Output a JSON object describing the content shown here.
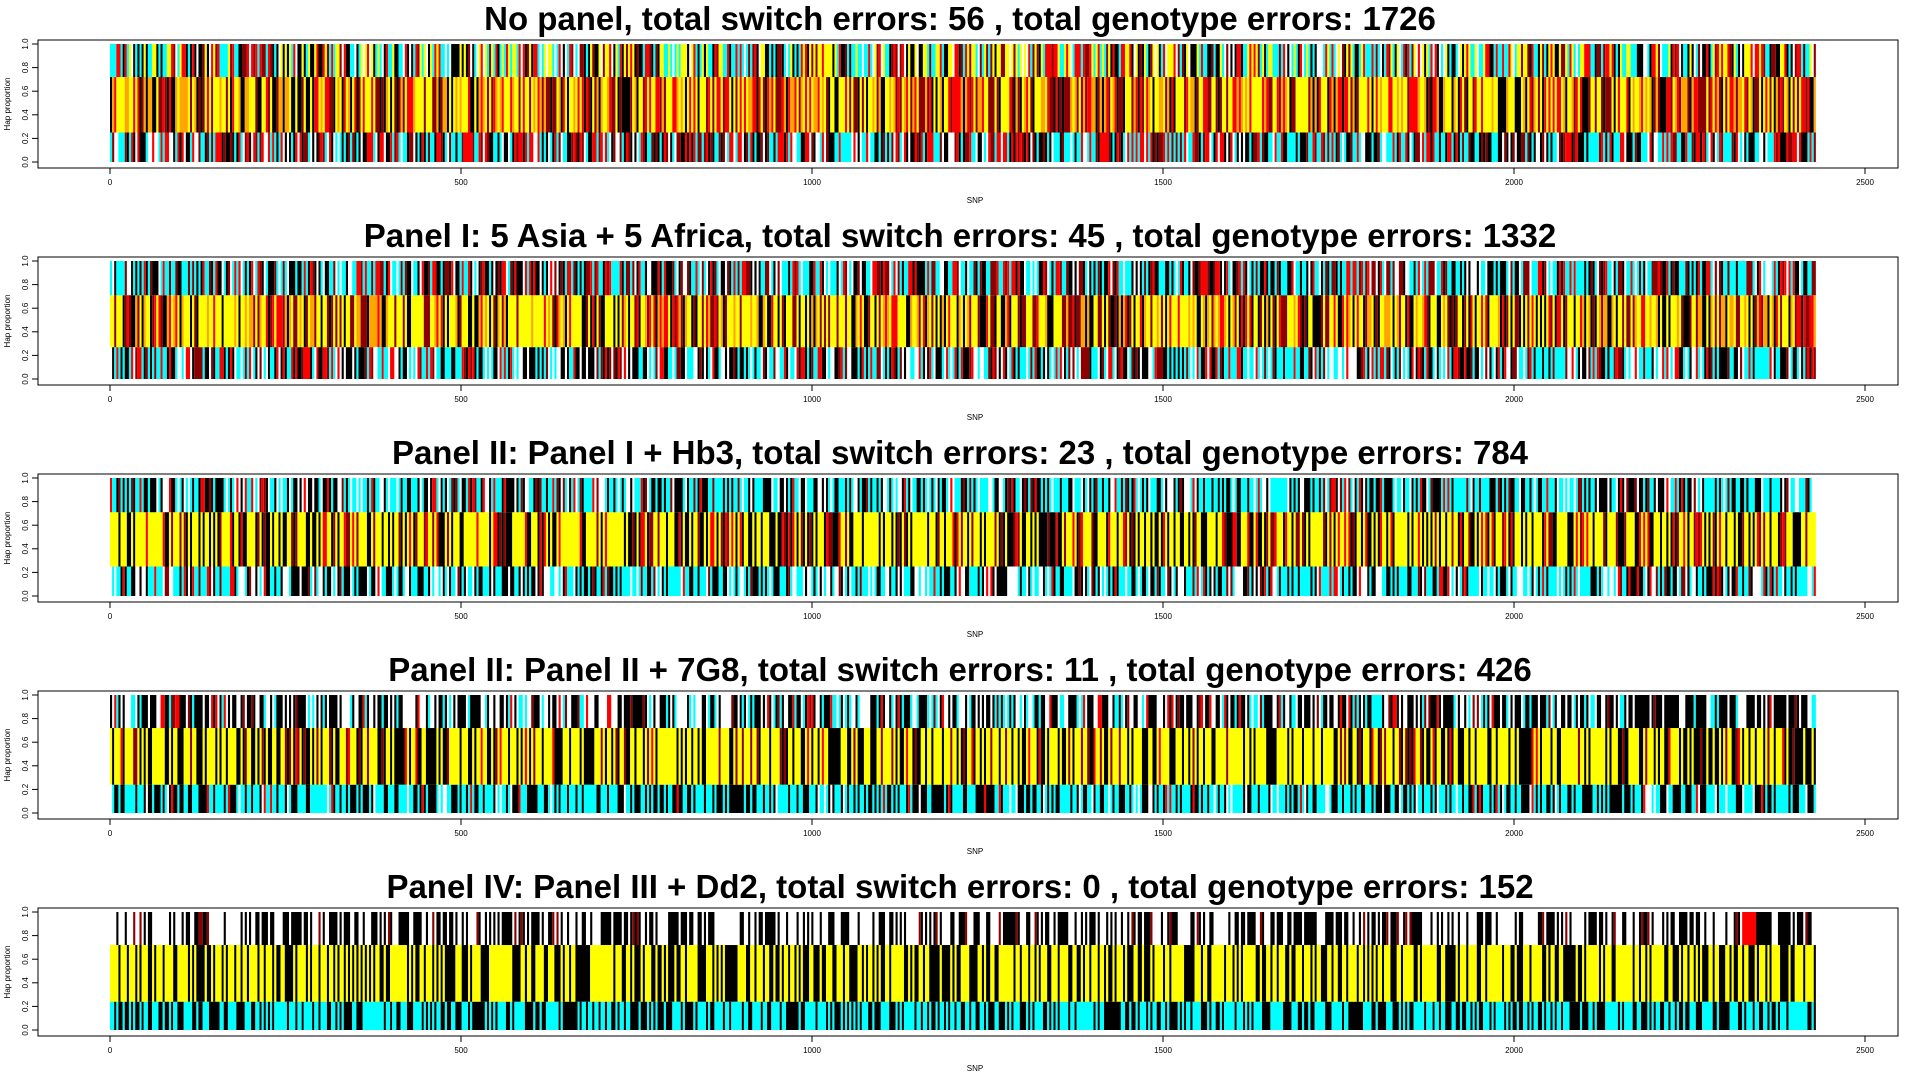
{
  "chart_data": [
    {
      "type": "heatmap",
      "title": "No panel,  total switch errors: 56 , total genotype errors: 1726",
      "xlabel": "SNP",
      "ylabel": "Hap proportion",
      "xlim": [
        0,
        2500
      ],
      "ylim": [
        0,
        1
      ],
      "xticks": [
        0,
        500,
        1000,
        1500,
        2000,
        2500
      ],
      "xtick_labels": [
        "0",
        "500",
        "1000",
        "1500",
        "2000",
        "2500"
      ],
      "yticks": [
        0,
        0.2,
        0.4,
        0.6,
        0.8,
        1
      ],
      "ytick_labels": [
        "0.0",
        "0.2",
        "0.4",
        "0.6",
        "0.8",
        "1.0"
      ],
      "n_snps": 2430,
      "rows": [
        {
          "ymin": 0.0,
          "ymax": 0.25,
          "composition": {
            "#00ffff": 0.25,
            "#000000": 0.25,
            "#ff0000": 0.2,
            "#8b0000": 0.15,
            "#ffffff": 0.15
          }
        },
        {
          "ymin": 0.25,
          "ymax": 0.72,
          "composition": {
            "#ffff00": 0.35,
            "#ff0000": 0.2,
            "#8b0000": 0.15,
            "#000000": 0.15,
            "#ffa500": 0.15
          }
        },
        {
          "ymin": 0.72,
          "ymax": 1.0,
          "composition": {
            "#00ffff": 0.25,
            "#ff0000": 0.15,
            "#ffff00": 0.2,
            "#000000": 0.2,
            "#8b0000": 0.1,
            "#ffffff": 0.1
          }
        }
      ]
    },
    {
      "type": "heatmap",
      "title": "Panel I: 5 Asia + 5 Africa,  total switch errors: 45 , total genotype errors: 1332",
      "xlabel": "SNP",
      "ylabel": "Hap proportion",
      "xlim": [
        0,
        2500
      ],
      "ylim": [
        0,
        1
      ],
      "xticks": [
        0,
        500,
        1000,
        1500,
        2000,
        2500
      ],
      "xtick_labels": [
        "0",
        "500",
        "1000",
        "1500",
        "2000",
        "2500"
      ],
      "yticks": [
        0,
        0.2,
        0.4,
        0.6,
        0.8,
        1
      ],
      "ytick_labels": [
        "0.0",
        "0.2",
        "0.4",
        "0.6",
        "0.8",
        "1.0"
      ],
      "n_snps": 2430,
      "rows": [
        {
          "ymin": 0.0,
          "ymax": 0.27,
          "composition": {
            "#00ffff": 0.3,
            "#000000": 0.25,
            "#ffffff": 0.2,
            "#ff0000": 0.15,
            "#8b0000": 0.1
          }
        },
        {
          "ymin": 0.27,
          "ymax": 0.71,
          "composition": {
            "#ffff00": 0.4,
            "#000000": 0.2,
            "#8b0000": 0.15,
            "#ff0000": 0.1,
            "#ffa500": 0.15
          }
        },
        {
          "ymin": 0.71,
          "ymax": 1.0,
          "composition": {
            "#00ffff": 0.3,
            "#000000": 0.25,
            "#ffffff": 0.15,
            "#ff0000": 0.15,
            "#8b0000": 0.15
          }
        }
      ]
    },
    {
      "type": "heatmap",
      "title": "Panel II: Panel I + Hb3,  total switch errors: 23 , total genotype errors: 784",
      "xlabel": "SNP",
      "ylabel": "Hap proportion",
      "xlim": [
        0,
        2500
      ],
      "ylim": [
        0,
        1
      ],
      "xticks": [
        0,
        500,
        1000,
        1500,
        2000,
        2500
      ],
      "xtick_labels": [
        "0",
        "500",
        "1000",
        "1500",
        "2000",
        "2500"
      ],
      "yticks": [
        0,
        0.2,
        0.4,
        0.6,
        0.8,
        1
      ],
      "ytick_labels": [
        "0.0",
        "0.2",
        "0.4",
        "0.6",
        "0.8",
        "1.0"
      ],
      "n_snps": 2430,
      "rows": [
        {
          "ymin": 0.0,
          "ymax": 0.25,
          "composition": {
            "#00ffff": 0.4,
            "#000000": 0.3,
            "#ffffff": 0.2,
            "#ff0000": 0.05,
            "#8b0000": 0.05
          }
        },
        {
          "ymin": 0.25,
          "ymax": 0.71,
          "composition": {
            "#ffff00": 0.5,
            "#000000": 0.3,
            "#ff0000": 0.1,
            "#8b0000": 0.1
          }
        },
        {
          "ymin": 0.71,
          "ymax": 1.0,
          "composition": {
            "#00ffff": 0.4,
            "#000000": 0.35,
            "#ffffff": 0.15,
            "#ff0000": 0.05,
            "#8b0000": 0.05
          }
        }
      ]
    },
    {
      "type": "heatmap",
      "title": "Panel II: Panel II + 7G8,  total switch errors: 11 , total genotype errors: 426",
      "xlabel": "SNP",
      "ylabel": "Hap proportion",
      "xlim": [
        0,
        2500
      ],
      "ylim": [
        0,
        1
      ],
      "xticks": [
        0,
        500,
        1000,
        1500,
        2000,
        2500
      ],
      "xtick_labels": [
        "0",
        "500",
        "1000",
        "1500",
        "2000",
        "2500"
      ],
      "yticks": [
        0,
        0.2,
        0.4,
        0.6,
        0.8,
        1
      ],
      "ytick_labels": [
        "0.0",
        "0.2",
        "0.4",
        "0.6",
        "0.8",
        "1.0"
      ],
      "n_snps": 2430,
      "rows": [
        {
          "ymin": 0.0,
          "ymax": 0.24,
          "composition": {
            "#00ffff": 0.5,
            "#000000": 0.4,
            "#ffffff": 0.07,
            "#ff0000": 0.03
          }
        },
        {
          "ymin": 0.24,
          "ymax": 0.72,
          "composition": {
            "#ffff00": 0.55,
            "#000000": 0.35,
            "#8b0000": 0.07,
            "#ff0000": 0.03
          }
        },
        {
          "ymin": 0.72,
          "ymax": 1.0,
          "composition": {
            "#000000": 0.45,
            "#ffffff": 0.3,
            "#00ffff": 0.15,
            "#8b0000": 0.05,
            "#ff0000": 0.05
          }
        }
      ]
    },
    {
      "type": "heatmap",
      "title": "Panel IV: Panel III + Dd2,  total switch errors: 0 , total genotype errors: 152",
      "xlabel": "SNP",
      "ylabel": "Hap proportion",
      "xlim": [
        0,
        2500
      ],
      "ylim": [
        0,
        1
      ],
      "xticks": [
        0,
        500,
        1000,
        1500,
        2000,
        2500
      ],
      "xtick_labels": [
        "0",
        "500",
        "1000",
        "1500",
        "2000",
        "2500"
      ],
      "yticks": [
        0,
        0.2,
        0.4,
        0.6,
        0.8,
        1
      ],
      "ytick_labels": [
        "0.0",
        "0.2",
        "0.4",
        "0.6",
        "0.8",
        "1.0"
      ],
      "n_snps": 2430,
      "rows": [
        {
          "ymin": 0.0,
          "ymax": 0.24,
          "composition": {
            "#00ffff": 0.55,
            "#000000": 0.45
          }
        },
        {
          "ymin": 0.24,
          "ymax": 0.72,
          "composition": {
            "#ffff00": 0.6,
            "#000000": 0.4
          }
        },
        {
          "ymin": 0.72,
          "ymax": 1.0,
          "composition": {
            "#000000": 0.45,
            "#ffffff": 0.5,
            "#8b0000": 0.05
          }
        }
      ],
      "highlight": {
        "x_start": 2325,
        "x_end": 2345,
        "ymin": 0.72,
        "ymax": 1.0,
        "color": "#ff0000"
      }
    }
  ]
}
